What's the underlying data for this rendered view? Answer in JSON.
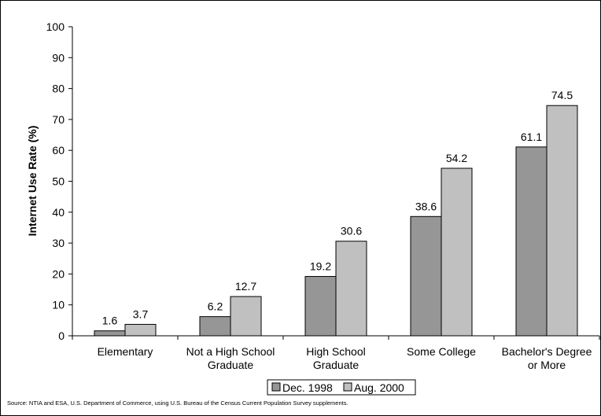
{
  "chart_data": {
    "type": "bar",
    "categories": [
      [
        "Elementary"
      ],
      [
        "Not a High School",
        "Graduate"
      ],
      [
        "High School",
        "Graduate"
      ],
      [
        "Some College"
      ],
      [
        "Bachelor's Degree",
        "or More"
      ]
    ],
    "series": [
      {
        "name": "Dec. 1998",
        "values": [
          1.6,
          6.2,
          19.2,
          38.6,
          61.1
        ],
        "color": "#969696"
      },
      {
        "name": "Aug. 2000",
        "values": [
          3.7,
          12.7,
          30.6,
          54.2,
          74.5
        ],
        "color": "#c0c0c0"
      }
    ],
    "ylabel": "Internet Use Rate (%)",
    "xlabel": "",
    "ylim": [
      0,
      100
    ],
    "yticks": [
      0,
      10,
      20,
      30,
      40,
      50,
      60,
      70,
      80,
      90,
      100
    ],
    "grid": false,
    "legend": "bottom-center",
    "source": "Source: NTIA and ESA, U.S. Department of Commerce, using U.S. Bureau of the Census Current Population Survey supplements."
  }
}
